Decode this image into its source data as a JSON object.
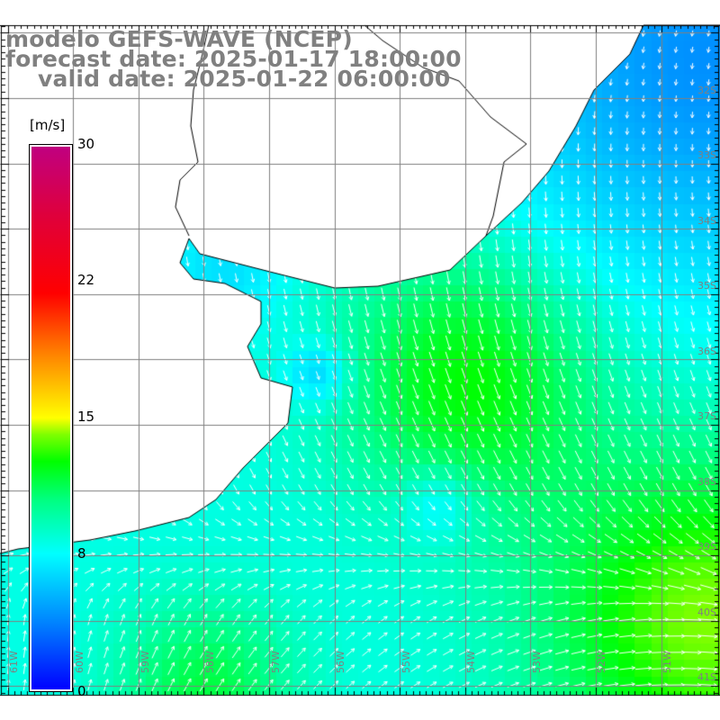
{
  "title": {
    "line1": "modelo GEFS-WAVE (NCEP)",
    "line2": "forecast date: 2025-01-17 18:00:00",
    "line3": "valid date: 2025-01-22 06:00:00"
  },
  "colorbar": {
    "unit": "[m/s]",
    "min": 0,
    "max": 30,
    "ticks": [
      "30",
      "22",
      "15",
      "8",
      "0"
    ]
  },
  "lat_labels": [
    "32S",
    "33S",
    "34S",
    "35S",
    "36S",
    "37S",
    "38S",
    "39S",
    "40S",
    "41S"
  ],
  "lon_labels": [
    "61W",
    "60W",
    "59W",
    "58W",
    "57W",
    "56W",
    "55W",
    "54W",
    "53W",
    "52W",
    "51W"
  ],
  "colors": {
    "land": "#ffffff",
    "grid": "#808080",
    "arrow": "#ffffff",
    "coast": "#000000"
  }
}
